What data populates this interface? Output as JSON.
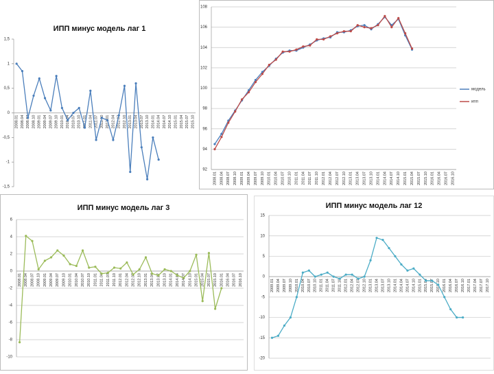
{
  "chart_data": [
    {
      "type": "line",
      "title": "ИПП минус модель лаг 1",
      "categories": [
        "2008.01",
        "2008.04",
        "2008.07",
        "2008.10",
        "2009.01",
        "2009.04",
        "2009.07",
        "2009.10",
        "2010.01",
        "2010.04",
        "2010.07",
        "2010.10",
        "2011.01",
        "2011.04",
        "2011.07",
        "2011.10",
        "2012.01",
        "2012.04",
        "2012.07",
        "2012.10",
        "2013.01",
        "2013.04",
        "2013.07",
        "2013.10",
        "2014.01",
        "2014.04",
        "2014.07",
        "2014.10",
        "2015.01",
        "2015.04",
        "2015.07",
        "2015.10"
      ],
      "series": [
        {
          "color": "#4a7ebb",
          "values": [
            1.0,
            0.85,
            -0.1,
            0.35,
            0.7,
            0.3,
            0.05,
            0.75,
            0.1,
            -0.15,
            0,
            0.1,
            -0.3,
            0.45,
            -0.55,
            -0.1,
            -0.15,
            -0.55,
            -0.05,
            0.55,
            -1.2,
            0.6,
            -0.7,
            -1.35,
            -0.5,
            -0.95,
            null,
            null,
            null,
            null,
            null,
            null
          ]
        }
      ],
      "ylim": [
        -1.5,
        1.5
      ],
      "yticks": [
        {
          "value": -1.5,
          "label": "-1,5"
        },
        -1,
        {
          "value": -0.5,
          "label": "-0,5"
        },
        0,
        {
          "value": 0.5,
          "label": "0,5"
        },
        1,
        {
          "value": 1.5,
          "label": "1,5"
        }
      ],
      "grid": false
    },
    {
      "type": "line",
      "categories": [
        "2008.01",
        "2008.04",
        "2008.07",
        "2008.10",
        "2009.01",
        "2009.04",
        "2009.07",
        "2009.10",
        "2010.01",
        "2010.04",
        "2010.07",
        "2010.10",
        "2011.01",
        "2011.04",
        "2011.07",
        "2011.10",
        "2012.01",
        "2012.04",
        "2012.07",
        "2012.10",
        "2013.01",
        "2013.04",
        "2013.07",
        "2013.10",
        "2014.01",
        "2014.04",
        "2014.07",
        "2014.10",
        "2015.01",
        "2015.04",
        "2015.07",
        "2015.10",
        "2016.01",
        "2016.04",
        "2016.07",
        "2016.10"
      ],
      "series": [
        {
          "name": "модель",
          "color": "#4a7ebb",
          "values": [
            94.5,
            95.5,
            96.8,
            97.8,
            98.8,
            99.8,
            100.8,
            101.6,
            102.2,
            102.9,
            103.5,
            103.7,
            103.7,
            104.0,
            104.3,
            104.7,
            104.9,
            105.0,
            105.5,
            105.5,
            105.7,
            106.1,
            106.2,
            105.8,
            106.3,
            107.0,
            106.2,
            106.8,
            105.2,
            103.8,
            null,
            null,
            null,
            null,
            null,
            null
          ]
        },
        {
          "name": "ипп",
          "color": "#be4b48",
          "values": [
            94.0,
            95.2,
            96.6,
            97.7,
            98.9,
            99.6,
            100.6,
            101.4,
            102.3,
            102.8,
            103.6,
            103.6,
            103.8,
            104.1,
            104.2,
            104.8,
            104.8,
            105.1,
            105.4,
            105.6,
            105.6,
            106.2,
            106.0,
            105.9,
            106.2,
            107.1,
            106.0,
            106.9,
            105.4,
            103.9,
            null,
            null,
            null,
            null,
            null,
            null
          ]
        }
      ],
      "ylim": [
        92,
        108
      ],
      "yticks": [
        92,
        94,
        96,
        98,
        100,
        102,
        104,
        106,
        108
      ],
      "grid": true,
      "legend": "right"
    },
    {
      "type": "line",
      "title": "ИПП минус модель  лаг 3",
      "categories": [
        "2008.01",
        "2008.04",
        "2008.07",
        "2008.10",
        "2009.01",
        "2009.04",
        "2009.07",
        "2009.10",
        "2010.01",
        "2010.04",
        "2010.07",
        "2010.10",
        "2011.01",
        "2011.04",
        "2011.07",
        "2011.10",
        "2012.01",
        "2012.04",
        "2012.07",
        "2012.10",
        "2013.01",
        "2013.04",
        "2013.07",
        "2013.10",
        "2014.01",
        "2014.04",
        "2014.07",
        "2014.10",
        "2015.01",
        "2015.04",
        "2015.07",
        "2015.10",
        "2016.01",
        "2016.04",
        "2016.07",
        "2016.10"
      ],
      "series": [
        {
          "color": "#9bbb59",
          "values": [
            -8.3,
            4.1,
            3.5,
            0.2,
            1.2,
            1.6,
            2.4,
            1.8,
            0.8,
            0.6,
            2.4,
            0.4,
            0.5,
            -0.3,
            -0.2,
            0.4,
            0.3,
            1.0,
            -0.4,
            0.2,
            1.6,
            -0.3,
            -0.5,
            0.2,
            0,
            -0.5,
            -0.8,
            0,
            1.9,
            -3.5,
            2.1,
            -4.4,
            -2.0,
            null,
            null,
            null
          ]
        }
      ],
      "ylim": [
        -10,
        6
      ],
      "yticks": [
        -10,
        -8,
        -6,
        -4,
        -2,
        0,
        2,
        4,
        6
      ],
      "grid": true
    },
    {
      "type": "line",
      "title": "ИПП минус модель  лаг 12",
      "categories": [
        "2009.01",
        "2009.04",
        "2009.07",
        "2009.10",
        "2010.01",
        "2010.04",
        "2010.07",
        "2010.10",
        "2011.01",
        "2011.04",
        "2011.07",
        "2011.10",
        "2012.01",
        "2012.04",
        "2012.07",
        "2012.10",
        "2013.01",
        "2013.04",
        "2013.07",
        "2013.10",
        "2014.01",
        "2014.04",
        "2014.07",
        "2014.10",
        "2015.01",
        "2015.04",
        "2015.07",
        "2015.10",
        "2016.01",
        "2016.04",
        "2016.07",
        "2016.10",
        "2017.01",
        "2017.04",
        "2017.07",
        "2017.10"
      ],
      "series": [
        {
          "color": "#4bacc6",
          "values": [
            -15,
            -14.5,
            -12,
            -10,
            -5,
            1,
            1.5,
            0,
            0.5,
            1,
            0,
            -0.5,
            0.5,
            0.5,
            -0.5,
            0,
            4,
            9.5,
            9,
            7,
            5,
            3,
            1.5,
            2,
            0.5,
            -1,
            -1,
            -2,
            -5,
            -8,
            -10,
            -10,
            null,
            null,
            null,
            null
          ]
        }
      ],
      "ylim": [
        -20,
        15
      ],
      "yticks": [
        -20,
        -15,
        -10,
        -5,
        0,
        5,
        10,
        15
      ],
      "grid": true
    }
  ]
}
